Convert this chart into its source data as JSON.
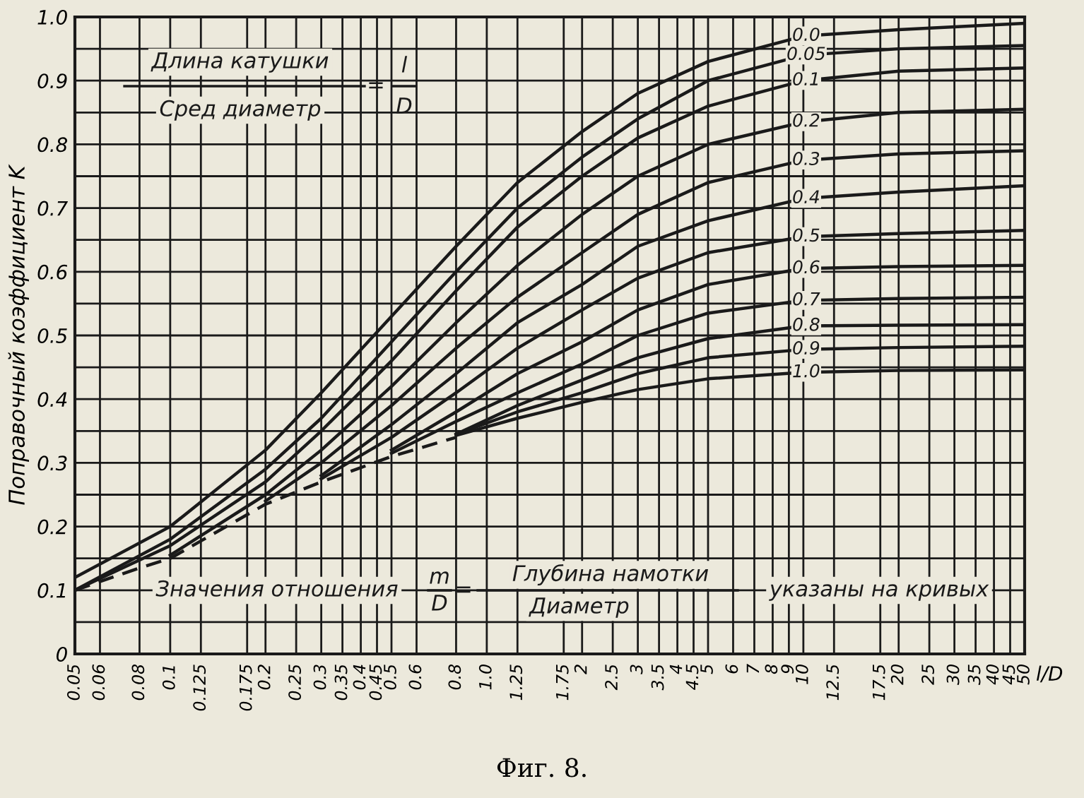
{
  "chart_data": {
    "type": "line",
    "ylabel": "Поправочный коэффициент K",
    "xlabel": "l/D",
    "log": "x",
    "xlim": [
      0.05,
      50
    ],
    "ylim": [
      0,
      1.0
    ],
    "xticks": [
      0.05,
      0.06,
      0.08,
      0.1,
      0.125,
      0.175,
      0.2,
      0.25,
      0.3,
      0.35,
      0.4,
      0.45,
      0.5,
      0.6,
      0.8,
      {
        "value": 1,
        "label": "1.0"
      },
      1.25,
      1.75,
      2,
      2.5,
      3,
      3.5,
      4,
      4.5,
      5,
      6,
      7,
      8,
      9,
      10,
      12.5,
      17.5,
      20,
      25,
      30,
      35,
      40,
      45,
      50
    ],
    "yticks": [
      0,
      {
        "value": 0.05,
        "label": null
      },
      0.1,
      {
        "value": 0.15,
        "label": null
      },
      0.2,
      {
        "value": 0.25,
        "label": null
      },
      0.3,
      {
        "value": 0.35,
        "label": null
      },
      0.4,
      {
        "value": 0.45,
        "label": null
      },
      0.5,
      {
        "value": 0.55,
        "label": null
      },
      0.6,
      {
        "value": 0.65,
        "label": null
      },
      0.7,
      {
        "value": 0.75,
        "label": null
      },
      0.8,
      {
        "value": 0.85,
        "label": null
      },
      0.9,
      {
        "value": 0.95,
        "label": null
      },
      {
        "value": 1,
        "label": "1.0"
      }
    ],
    "grid": true,
    "legend": false,
    "marker": "none",
    "line_style": "solid",
    "series": [
      {
        "name": "0.0",
        "color": "#1a1a1a",
        "x": [
          0.05,
          0.1,
          0.2,
          0.3,
          0.5,
          0.8,
          1.25,
          2,
          3,
          5,
          10,
          20,
          50
        ],
        "values": [
          0.12,
          0.2,
          0.32,
          0.41,
          0.53,
          0.64,
          0.74,
          0.82,
          0.88,
          0.93,
          0.97,
          0.98,
          0.99
        ]
      },
      {
        "name": "0.05",
        "color": "#1a1a1a",
        "x": [
          0.05,
          0.1,
          0.2,
          0.3,
          0.5,
          0.8,
          1.25,
          2,
          3,
          5,
          10,
          20,
          50
        ],
        "values": [
          0.1,
          0.18,
          0.29,
          0.37,
          0.49,
          0.6,
          0.7,
          0.78,
          0.84,
          0.9,
          0.94,
          0.95,
          0.955
        ]
      },
      {
        "name": "0.1",
        "color": "#1a1a1a",
        "x": [
          0.05,
          0.1,
          0.2,
          0.3,
          0.5,
          0.8,
          1.25,
          2,
          3,
          5,
          10,
          20,
          50
        ],
        "values": [
          0.1,
          0.17,
          0.27,
          0.35,
          0.46,
          0.57,
          0.67,
          0.75,
          0.81,
          0.86,
          0.9,
          0.915,
          0.92
        ]
      },
      {
        "name": "0.2",
        "color": "#1a1a1a",
        "x": [
          0.1,
          0.2,
          0.3,
          0.5,
          0.8,
          1.25,
          2,
          3,
          5,
          10,
          20,
          50
        ],
        "values": [
          0.155,
          0.25,
          0.32,
          0.42,
          0.52,
          0.61,
          0.69,
          0.75,
          0.8,
          0.835,
          0.85,
          0.855
        ]
      },
      {
        "name": "0.3",
        "color": "#1a1a1a",
        "x": [
          0.2,
          0.3,
          0.5,
          0.8,
          1.25,
          2,
          3,
          5,
          10,
          20,
          50
        ],
        "values": [
          0.24,
          0.3,
          0.39,
          0.48,
          0.56,
          0.63,
          0.69,
          0.74,
          0.775,
          0.785,
          0.79
        ]
      },
      {
        "name": "0.4",
        "color": "#1a1a1a",
        "x": [
          0.3,
          0.5,
          0.8,
          1.25,
          2,
          3,
          5,
          10,
          20,
          50
        ],
        "values": [
          0.28,
          0.36,
          0.44,
          0.52,
          0.58,
          0.64,
          0.68,
          0.715,
          0.725,
          0.735
        ]
      },
      {
        "name": "0.5",
        "color": "#1a1a1a",
        "x": [
          0.3,
          0.5,
          0.8,
          1.25,
          2,
          3,
          5,
          10,
          20,
          50
        ],
        "values": [
          0.275,
          0.34,
          0.41,
          0.48,
          0.54,
          0.59,
          0.63,
          0.655,
          0.66,
          0.665
        ]
      },
      {
        "name": "0.6",
        "color": "#1a1a1a",
        "x": [
          0.5,
          0.8,
          1.25,
          2,
          3,
          5,
          10,
          20,
          50
        ],
        "values": [
          0.32,
          0.38,
          0.44,
          0.49,
          0.54,
          0.58,
          0.605,
          0.608,
          0.61
        ]
      },
      {
        "name": "0.7",
        "color": "#1a1a1a",
        "x": [
          0.5,
          0.8,
          1.25,
          2,
          3,
          5,
          10,
          20,
          50
        ],
        "values": [
          0.315,
          0.365,
          0.41,
          0.455,
          0.5,
          0.535,
          0.555,
          0.558,
          0.56
        ]
      },
      {
        "name": "0.8",
        "color": "#1a1a1a",
        "x": [
          0.8,
          1.25,
          2,
          3,
          5,
          10,
          20,
          50
        ],
        "values": [
          0.345,
          0.39,
          0.43,
          0.465,
          0.495,
          0.515,
          0.516,
          0.517
        ]
      },
      {
        "name": "0.9",
        "color": "#1a1a1a",
        "x": [
          0.8,
          1.25,
          2,
          3,
          5,
          10,
          20,
          50
        ],
        "values": [
          0.345,
          0.38,
          0.41,
          0.44,
          0.465,
          0.478,
          0.481,
          0.483
        ]
      },
      {
        "name": "1.0",
        "color": "#1a1a1a",
        "x": [
          0.8,
          1.25,
          2,
          3,
          5,
          10,
          20,
          50
        ],
        "values": [
          0.343,
          0.37,
          0.395,
          0.415,
          0.432,
          0.442,
          0.445,
          0.446
        ]
      },
      {
        "color": "#1a1a1a",
        "line_style": "dashed",
        "x": [
          0.05,
          0.08,
          0.1,
          0.2,
          0.3,
          0.5,
          0.8
        ],
        "values": [
          0.1,
          0.135,
          0.15,
          0.235,
          0.27,
          0.31,
          0.34
        ]
      }
    ],
    "annotations": [
      "Длина катушки",
      "Сред диаметр",
      "=",
      "l",
      "D",
      "Значения отношения",
      "m",
      "D",
      "=",
      "Глубина намотки",
      "Диаметр",
      "указаны на кривых",
      "Фиг. 8."
    ]
  }
}
